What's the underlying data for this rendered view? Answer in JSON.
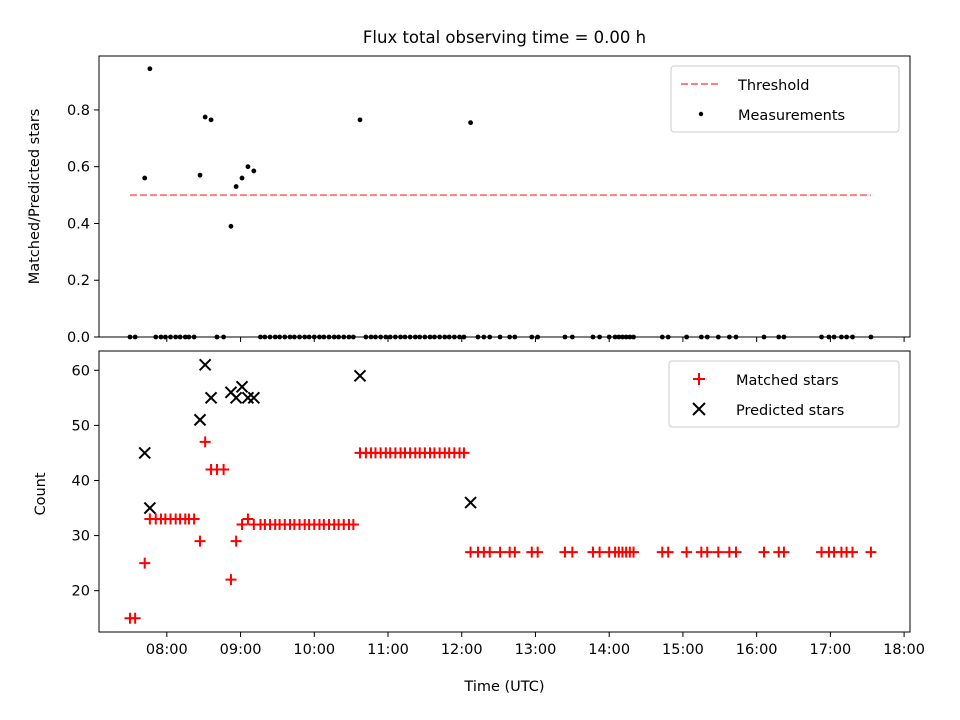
{
  "chart_data": [
    {
      "type": "scatter",
      "title": "Flux total observing time = 0.00 h",
      "xlabel": "",
      "ylabel": "Matched/Predicted stars",
      "xlim": [
        7.08,
        18.08
      ],
      "ylim": [
        0.0,
        0.99
      ],
      "yticks": [
        0.0,
        0.2,
        0.4,
        0.6,
        0.8
      ],
      "ytick_labels": [
        "0.0",
        "0.2",
        "0.4",
        "0.6",
        "0.8"
      ],
      "legend": {
        "location": "upper right",
        "entries": [
          "Threshold",
          "Measurements"
        ]
      },
      "threshold": {
        "name": "Threshold",
        "y": 0.5,
        "x_range": [
          7.5,
          17.55
        ],
        "color": "#ff7f7f"
      },
      "measurements": {
        "name": "Measurements",
        "color": "#000000",
        "points": [
          [
            7.5,
            0
          ],
          [
            7.57,
            0
          ],
          [
            7.7,
            0.56
          ],
          [
            7.77,
            0.945
          ],
          [
            7.85,
            0
          ],
          [
            7.92,
            0
          ],
          [
            7.98,
            0
          ],
          [
            8.05,
            0
          ],
          [
            8.12,
            0
          ],
          [
            8.18,
            0
          ],
          [
            8.25,
            0
          ],
          [
            8.3,
            0
          ],
          [
            8.37,
            0
          ],
          [
            8.45,
            0.57
          ],
          [
            8.52,
            0.775
          ],
          [
            8.6,
            0.765
          ],
          [
            8.68,
            0
          ],
          [
            8.77,
            0
          ],
          [
            8.87,
            0.39
          ],
          [
            8.94,
            0.53
          ],
          [
            9.02,
            0.56
          ],
          [
            9.1,
            0.6
          ],
          [
            9.18,
            0.585
          ],
          [
            9.27,
            0
          ],
          [
            9.33,
            0
          ],
          [
            9.4,
            0
          ],
          [
            9.47,
            0
          ],
          [
            9.53,
            0
          ],
          [
            9.6,
            0
          ],
          [
            9.67,
            0
          ],
          [
            9.73,
            0
          ],
          [
            9.8,
            0
          ],
          [
            9.87,
            0
          ],
          [
            9.93,
            0
          ],
          [
            10.0,
            0
          ],
          [
            10.07,
            0
          ],
          [
            10.13,
            0
          ],
          [
            10.2,
            0
          ],
          [
            10.27,
            0
          ],
          [
            10.33,
            0
          ],
          [
            10.4,
            0
          ],
          [
            10.47,
            0
          ],
          [
            10.53,
            0
          ],
          [
            10.62,
            0.765
          ],
          [
            10.7,
            0
          ],
          [
            10.77,
            0
          ],
          [
            10.83,
            0
          ],
          [
            10.9,
            0
          ],
          [
            10.97,
            0
          ],
          [
            11.03,
            0
          ],
          [
            11.1,
            0
          ],
          [
            11.17,
            0
          ],
          [
            11.23,
            0
          ],
          [
            11.3,
            0
          ],
          [
            11.37,
            0
          ],
          [
            11.43,
            0
          ],
          [
            11.5,
            0
          ],
          [
            11.57,
            0
          ],
          [
            11.63,
            0
          ],
          [
            11.7,
            0
          ],
          [
            11.77,
            0
          ],
          [
            11.83,
            0
          ],
          [
            11.9,
            0
          ],
          [
            11.97,
            0
          ],
          [
            12.03,
            0
          ],
          [
            12.12,
            0.755
          ],
          [
            12.22,
            0
          ],
          [
            12.3,
            0
          ],
          [
            12.38,
            0
          ],
          [
            12.52,
            0
          ],
          [
            12.65,
            0
          ],
          [
            12.72,
            0
          ],
          [
            12.95,
            0
          ],
          [
            13.03,
            0
          ],
          [
            13.4,
            0
          ],
          [
            13.5,
            0
          ],
          [
            13.78,
            0
          ],
          [
            13.87,
            0
          ],
          [
            14.0,
            0
          ],
          [
            14.08,
            0
          ],
          [
            14.13,
            0
          ],
          [
            14.18,
            0
          ],
          [
            14.23,
            0
          ],
          [
            14.28,
            0
          ],
          [
            14.33,
            0
          ],
          [
            14.72,
            0
          ],
          [
            14.8,
            0
          ],
          [
            15.05,
            0
          ],
          [
            15.25,
            0
          ],
          [
            15.33,
            0
          ],
          [
            15.48,
            0
          ],
          [
            15.63,
            0
          ],
          [
            15.72,
            0
          ],
          [
            16.1,
            0
          ],
          [
            16.3,
            0
          ],
          [
            16.37,
            0
          ],
          [
            16.88,
            0
          ],
          [
            16.98,
            0
          ],
          [
            17.05,
            0
          ],
          [
            17.15,
            0
          ],
          [
            17.22,
            0
          ],
          [
            17.3,
            0
          ],
          [
            17.55,
            0
          ]
        ]
      }
    },
    {
      "type": "scatter",
      "title": "",
      "xlabel": "Time (UTC)",
      "ylabel": "Count",
      "xlim": [
        7.08,
        18.08
      ],
      "ylim": [
        12.5,
        63.5
      ],
      "yticks": [
        20,
        30,
        40,
        50,
        60
      ],
      "ytick_labels": [
        "20",
        "30",
        "40",
        "50",
        "60"
      ],
      "xticks": [
        8,
        9,
        10,
        11,
        12,
        13,
        14,
        15,
        16,
        17,
        18
      ],
      "xtick_labels": [
        "08:00",
        "09:00",
        "10:00",
        "11:00",
        "12:00",
        "13:00",
        "14:00",
        "15:00",
        "16:00",
        "17:00",
        "18:00"
      ],
      "legend": {
        "location": "upper right",
        "entries": [
          "Matched stars",
          "Predicted stars"
        ]
      },
      "series": [
        {
          "name": "Matched stars",
          "marker": "+",
          "color": "#ff0000",
          "points": [
            [
              7.5,
              15
            ],
            [
              7.57,
              15
            ],
            [
              7.7,
              25
            ],
            [
              7.77,
              33
            ],
            [
              7.85,
              33
            ],
            [
              7.92,
              33
            ],
            [
              7.98,
              33
            ],
            [
              8.05,
              33
            ],
            [
              8.12,
              33
            ],
            [
              8.18,
              33
            ],
            [
              8.25,
              33
            ],
            [
              8.3,
              33
            ],
            [
              8.37,
              33
            ],
            [
              8.45,
              29
            ],
            [
              8.52,
              47
            ],
            [
              8.6,
              42
            ],
            [
              8.68,
              42
            ],
            [
              8.77,
              42
            ],
            [
              8.87,
              22
            ],
            [
              8.94,
              29
            ],
            [
              9.02,
              32
            ],
            [
              9.1,
              33
            ],
            [
              9.18,
              32
            ],
            [
              9.27,
              32
            ],
            [
              9.33,
              32
            ],
            [
              9.4,
              32
            ],
            [
              9.47,
              32
            ],
            [
              9.53,
              32
            ],
            [
              9.6,
              32
            ],
            [
              9.67,
              32
            ],
            [
              9.73,
              32
            ],
            [
              9.8,
              32
            ],
            [
              9.87,
              32
            ],
            [
              9.93,
              32
            ],
            [
              10.0,
              32
            ],
            [
              10.07,
              32
            ],
            [
              10.13,
              32
            ],
            [
              10.2,
              32
            ],
            [
              10.27,
              32
            ],
            [
              10.33,
              32
            ],
            [
              10.4,
              32
            ],
            [
              10.47,
              32
            ],
            [
              10.53,
              32
            ],
            [
              10.62,
              45
            ],
            [
              10.7,
              45
            ],
            [
              10.77,
              45
            ],
            [
              10.83,
              45
            ],
            [
              10.9,
              45
            ],
            [
              10.97,
              45
            ],
            [
              11.03,
              45
            ],
            [
              11.1,
              45
            ],
            [
              11.17,
              45
            ],
            [
              11.23,
              45
            ],
            [
              11.3,
              45
            ],
            [
              11.37,
              45
            ],
            [
              11.43,
              45
            ],
            [
              11.5,
              45
            ],
            [
              11.57,
              45
            ],
            [
              11.63,
              45
            ],
            [
              11.7,
              45
            ],
            [
              11.77,
              45
            ],
            [
              11.83,
              45
            ],
            [
              11.9,
              45
            ],
            [
              11.97,
              45
            ],
            [
              12.03,
              45
            ],
            [
              12.12,
              27
            ],
            [
              12.22,
              27
            ],
            [
              12.3,
              27
            ],
            [
              12.38,
              27
            ],
            [
              12.52,
              27
            ],
            [
              12.65,
              27
            ],
            [
              12.72,
              27
            ],
            [
              12.95,
              27
            ],
            [
              13.03,
              27
            ],
            [
              13.4,
              27
            ],
            [
              13.5,
              27
            ],
            [
              13.78,
              27
            ],
            [
              13.87,
              27
            ],
            [
              14.0,
              27
            ],
            [
              14.08,
              27
            ],
            [
              14.13,
              27
            ],
            [
              14.18,
              27
            ],
            [
              14.23,
              27
            ],
            [
              14.28,
              27
            ],
            [
              14.33,
              27
            ],
            [
              14.72,
              27
            ],
            [
              14.8,
              27
            ],
            [
              15.05,
              27
            ],
            [
              15.25,
              27
            ],
            [
              15.33,
              27
            ],
            [
              15.48,
              27
            ],
            [
              15.63,
              27
            ],
            [
              15.72,
              27
            ],
            [
              16.1,
              27
            ],
            [
              16.3,
              27
            ],
            [
              16.37,
              27
            ],
            [
              16.88,
              27
            ],
            [
              16.98,
              27
            ],
            [
              17.05,
              27
            ],
            [
              17.15,
              27
            ],
            [
              17.22,
              27
            ],
            [
              17.3,
              27
            ],
            [
              17.55,
              27
            ]
          ]
        },
        {
          "name": "Predicted stars",
          "marker": "x",
          "color": "#000000",
          "points": [
            [
              7.7,
              45
            ],
            [
              7.77,
              35
            ],
            [
              8.45,
              51
            ],
            [
              8.52,
              61
            ],
            [
              8.6,
              55
            ],
            [
              8.87,
              56
            ],
            [
              8.94,
              55
            ],
            [
              9.02,
              57
            ],
            [
              9.1,
              55
            ],
            [
              9.18,
              55
            ],
            [
              10.62,
              59
            ],
            [
              12.12,
              36
            ]
          ]
        }
      ]
    }
  ]
}
